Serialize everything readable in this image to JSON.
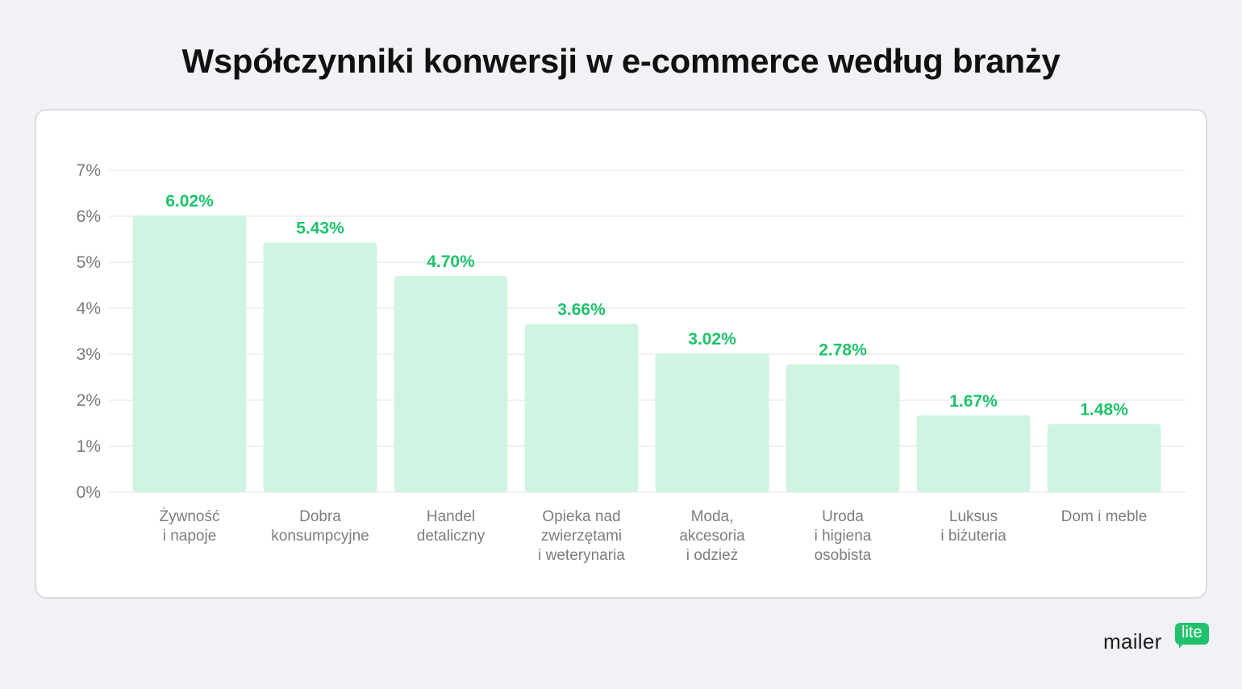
{
  "title": "Współczynniki konwersji w e-commerce według branży",
  "colors": {
    "bar": "#d0f4e2",
    "value_label": "#1fc26b",
    "grid": "#e6e6e6",
    "axis_text": "#7a7a7a",
    "background": "#f2f2f6",
    "card": "#ffffff",
    "brand": "#1fc26b"
  },
  "chart_data": {
    "type": "bar",
    "title": "Współczynniki konwersji w e-commerce według branży",
    "xlabel": "",
    "ylabel": "",
    "ylim": [
      0,
      7
    ],
    "yticks": [
      "0%",
      "1%",
      "2%",
      "3%",
      "4%",
      "5%",
      "6%",
      "7%"
    ],
    "grid": true,
    "categories": [
      [
        "Żywność",
        "i napoje"
      ],
      [
        "Dobra",
        "konsumpcyjne"
      ],
      [
        "Handel",
        "detaliczny"
      ],
      [
        "Opieka nad",
        "zwierzętami",
        "i weterynaria"
      ],
      [
        "Moda,",
        "akcesoria",
        "i odzież"
      ],
      [
        "Uroda",
        "i higiena",
        "osobista"
      ],
      [
        "Luksus",
        "i biżuteria"
      ],
      [
        "Dom i meble"
      ]
    ],
    "values": [
      6.02,
      5.43,
      4.7,
      3.66,
      3.02,
      2.78,
      1.67,
      1.48
    ],
    "value_labels": [
      "6.02%",
      "5.43%",
      "4.70%",
      "3.66%",
      "3.02%",
      "2.78%",
      "1.67%",
      "1.48%"
    ]
  },
  "logo": {
    "word": "mailer",
    "badge": "lite"
  }
}
